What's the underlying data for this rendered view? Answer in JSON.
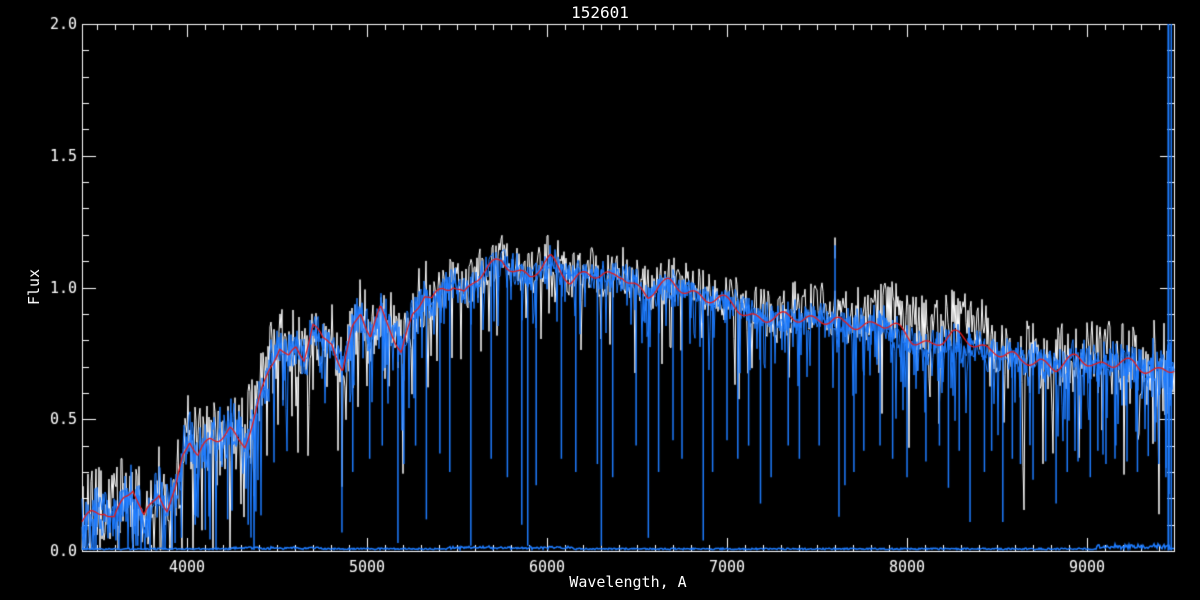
{
  "title": "152601",
  "axes": {
    "xlabel": "Wavelength, A",
    "ylabel": "Flux",
    "x_tick_labels": [
      "4000",
      "5000",
      "6000",
      "7000",
      "8000",
      "9000"
    ],
    "y_tick_labels": [
      "0.0",
      "0.5",
      "1.0",
      "1.5",
      "2.0"
    ]
  },
  "colors": {
    "background": "#000000",
    "axis": "#FFFFFF",
    "observed_spectrum": "#1E7CFF",
    "reference_spectrum": "#FFFFFF",
    "model_fit": "#E61C1C"
  },
  "chart_data": {
    "type": "line",
    "title": "152601",
    "xlabel": "Wavelength, A",
    "ylabel": "Flux",
    "xlim": [
      3417,
      9483
    ],
    "ylim": [
      0.0,
      2.0
    ],
    "x_major_ticks": [
      4000,
      5000,
      6000,
      7000,
      8000,
      9000
    ],
    "x_minor_step": 100,
    "y_major_ticks": [
      0.0,
      0.5,
      1.0,
      1.5,
      2.0
    ],
    "y_minor_step": 0.1,
    "grid": false,
    "legend": "none",
    "series": [
      {
        "name": "observed-spectrum",
        "color": "#1E7CFF",
        "style": "noisy-line"
      },
      {
        "name": "reference-spectrum",
        "color": "#FFFFFF",
        "style": "noisy-line"
      },
      {
        "name": "template-model",
        "color": "#E61C1C",
        "style": "smooth-line",
        "points": [
          [
            3417,
            0.1
          ],
          [
            3470,
            0.135
          ],
          [
            3540,
            0.165
          ],
          [
            3595,
            0.13
          ],
          [
            3650,
            0.2
          ],
          [
            3700,
            0.235
          ],
          [
            3760,
            0.115
          ],
          [
            3810,
            0.18
          ],
          [
            3845,
            0.23
          ],
          [
            3890,
            0.165
          ],
          [
            3935,
            0.23
          ],
          [
            3975,
            0.36
          ],
          [
            4015,
            0.42
          ],
          [
            4060,
            0.35
          ],
          [
            4130,
            0.42
          ],
          [
            4180,
            0.44
          ],
          [
            4240,
            0.47
          ],
          [
            4285,
            0.42
          ],
          [
            4322,
            0.4
          ],
          [
            4365,
            0.48
          ],
          [
            4410,
            0.58
          ],
          [
            4465,
            0.7
          ],
          [
            4515,
            0.79
          ],
          [
            4565,
            0.74
          ],
          [
            4605,
            0.77
          ],
          [
            4650,
            0.73
          ],
          [
            4700,
            0.85
          ],
          [
            4755,
            0.79
          ],
          [
            4805,
            0.8
          ],
          [
            4865,
            0.69
          ],
          [
            4920,
            0.85
          ],
          [
            4965,
            0.91
          ],
          [
            5020,
            0.8
          ],
          [
            5075,
            0.91
          ],
          [
            5130,
            0.85
          ],
          [
            5190,
            0.76
          ],
          [
            5255,
            0.9
          ],
          [
            5320,
            0.97
          ],
          [
            5360,
            0.94
          ],
          [
            5420,
            0.99
          ],
          [
            5480,
            1.02
          ],
          [
            5540,
            0.98
          ],
          [
            5600,
            1.03
          ],
          [
            5660,
            1.06
          ],
          [
            5750,
            1.1
          ],
          [
            5830,
            1.07
          ],
          [
            5905,
            1.045
          ],
          [
            5960,
            1.07
          ],
          [
            6020,
            1.1
          ],
          [
            6080,
            1.06
          ],
          [
            6130,
            1.03
          ],
          [
            6180,
            1.05
          ],
          [
            6220,
            1.06
          ],
          [
            6300,
            1.04
          ],
          [
            6360,
            1.03
          ],
          [
            6420,
            1.05
          ],
          [
            6480,
            1.02
          ],
          [
            6560,
            0.97
          ],
          [
            6620,
            1.0
          ],
          [
            6680,
            1.01
          ],
          [
            6740,
            1.0
          ],
          [
            6800,
            0.99
          ],
          [
            6880,
            0.96
          ],
          [
            6960,
            0.95
          ],
          [
            7040,
            0.93
          ],
          [
            7120,
            0.9
          ],
          [
            7200,
            0.885
          ],
          [
            7294,
            0.88
          ],
          [
            7380,
            0.885
          ],
          [
            7450,
            0.89
          ],
          [
            7520,
            0.88
          ],
          [
            7600,
            0.87
          ],
          [
            7650,
            0.85
          ],
          [
            7740,
            0.86
          ],
          [
            7850,
            0.87
          ],
          [
            7940,
            0.84
          ],
          [
            8030,
            0.8
          ],
          [
            8140,
            0.79
          ],
          [
            8255,
            0.815
          ],
          [
            8370,
            0.79
          ],
          [
            8500,
            0.76
          ],
          [
            8560,
            0.74
          ],
          [
            8630,
            0.715
          ],
          [
            8740,
            0.725
          ],
          [
            8825,
            0.7
          ],
          [
            8945,
            0.725
          ],
          [
            9055,
            0.71
          ],
          [
            9185,
            0.72
          ],
          [
            9295,
            0.687
          ],
          [
            9400,
            0.69
          ],
          [
            9483,
            0.7
          ]
        ]
      }
    ],
    "noise_amplitude_regions": [
      [
        3417,
        4000,
        0.105
      ],
      [
        4000,
        4500,
        0.115
      ],
      [
        4500,
        5350,
        0.085
      ],
      [
        5350,
        6600,
        0.062
      ],
      [
        6600,
        7300,
        0.065
      ],
      [
        7300,
        7900,
        0.07
      ],
      [
        7900,
        8600,
        0.075
      ],
      [
        8600,
        9350,
        0.095
      ],
      [
        9350,
        9483,
        0.13
      ]
    ],
    "white_offset_regions": [
      [
        4300,
        4650,
        0.03
      ],
      [
        7350,
        7850,
        0.04
      ],
      [
        7850,
        8450,
        0.065
      ]
    ],
    "blue_offset_regions": [
      [
        7900,
        8450,
        -0.02
      ]
    ],
    "absorption_spikes": [
      [
        3727,
        0.02
      ],
      [
        3934,
        0.03
      ],
      [
        3969,
        0.05
      ],
      [
        4046,
        0.1
      ],
      [
        4102,
        0.08
      ],
      [
        4226,
        0.12
      ],
      [
        4340,
        0.1
      ],
      [
        4383,
        0.15
      ],
      [
        4861,
        0.07
      ],
      [
        4921,
        0.3
      ],
      [
        5015,
        0.35
      ],
      [
        5085,
        0.4
      ],
      [
        5172,
        0.03
      ],
      [
        5205,
        0.33
      ],
      [
        5270,
        0.4
      ],
      [
        5330,
        0.12
      ],
      [
        5405,
        0.37
      ],
      [
        5460,
        0.3
      ],
      [
        5577,
        0.02
      ],
      [
        5690,
        0.35
      ],
      [
        5780,
        0.28
      ],
      [
        5860,
        0.1
      ],
      [
        5893,
        0.02
      ],
      [
        5940,
        0.25
      ],
      [
        6080,
        0.35
      ],
      [
        6160,
        0.3
      ],
      [
        6280,
        0.33
      ],
      [
        6302,
        0.02
      ],
      [
        6365,
        0.28
      ],
      [
        6495,
        0.4
      ],
      [
        6563,
        0.05
      ],
      [
        6620,
        0.3
      ],
      [
        6700,
        0.42
      ],
      [
        6750,
        0.35
      ],
      [
        6868,
        0.04
      ],
      [
        6920,
        0.3
      ],
      [
        7000,
        0.42
      ],
      [
        7060,
        0.35
      ],
      [
        7120,
        0.4
      ],
      [
        7186,
        0.18
      ],
      [
        7245,
        0.28
      ],
      [
        7340,
        0.4
      ],
      [
        7402,
        0.35
      ],
      [
        7512,
        0.4
      ],
      [
        7622,
        0.13
      ],
      [
        7655,
        0.25
      ],
      [
        7705,
        0.3
      ],
      [
        7760,
        0.38
      ],
      [
        7850,
        0.4
      ],
      [
        7920,
        0.35
      ],
      [
        8000,
        0.28
      ],
      [
        8105,
        0.34
      ],
      [
        8180,
        0.4
      ],
      [
        8230,
        0.24
      ],
      [
        8290,
        0.38
      ],
      [
        8350,
        0.11
      ],
      [
        8430,
        0.3
      ],
      [
        8470,
        0.38
      ],
      [
        8532,
        0.11
      ],
      [
        8585,
        0.35
      ],
      [
        8630,
        0.33
      ],
      [
        8700,
        0.27
      ],
      [
        8770,
        0.34
      ],
      [
        8828,
        0.18
      ],
      [
        8890,
        0.3
      ],
      [
        8950,
        0.34
      ],
      [
        9018,
        0.28
      ],
      [
        9060,
        0.38
      ],
      [
        9105,
        0.33
      ],
      [
        9160,
        0.4
      ],
      [
        9222,
        0.34
      ],
      [
        9280,
        0.3
      ],
      [
        9340,
        0.36
      ],
      [
        9398,
        0.33
      ],
      [
        9438,
        0.28
      ]
    ],
    "emission_spikes": [
      [
        7600,
        1.16
      ]
    ],
    "edge_artifact_lines": [
      9452,
      9468
    ],
    "error_line": {
      "base": 0.008,
      "bumps": [
        [
          4250,
          4750,
          0.006
        ],
        [
          5450,
          6150,
          0.008
        ],
        [
          9050,
          9460,
          0.018
        ]
      ]
    }
  }
}
